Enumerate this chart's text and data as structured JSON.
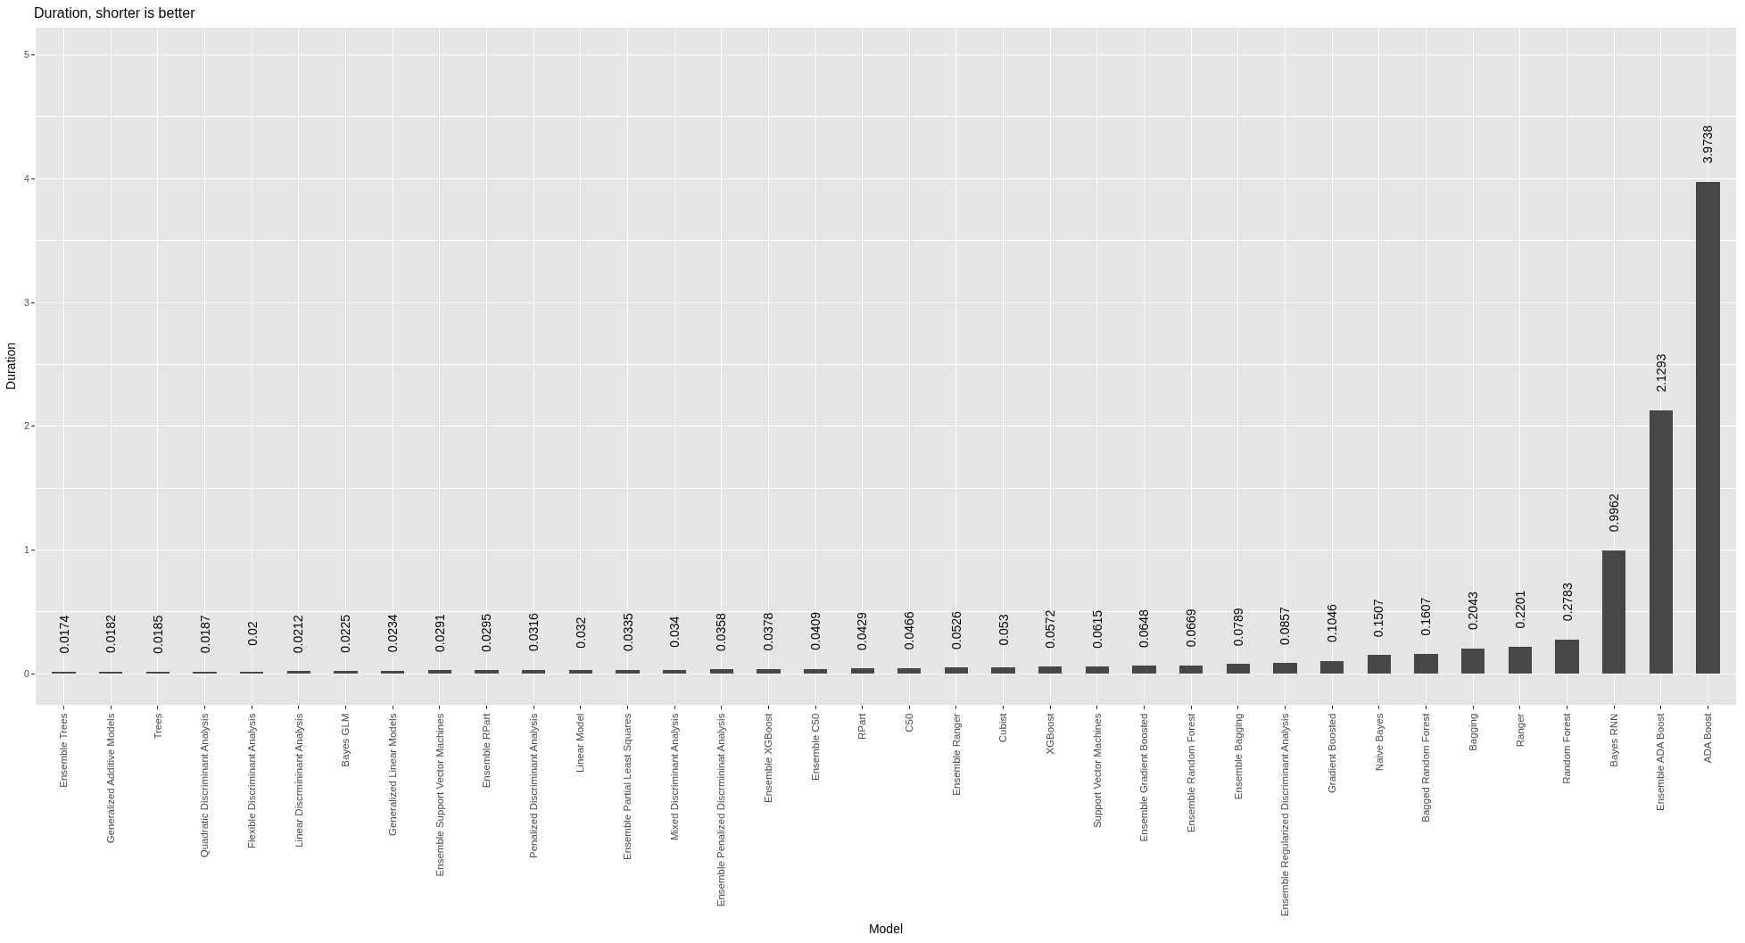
{
  "chart_data": {
    "type": "bar",
    "title": "Duration, shorter is better",
    "xlabel": "Model",
    "ylabel": "Duration",
    "categories": [
      "Ensemble Trees",
      "Generalized Additive Models",
      "Trees",
      "Quadratic Discriminant Analysis",
      "Flexible Discriminant Analysis",
      "Linear Discrmininant Analysis",
      "Bayes GLM",
      "Generalized Linear Models",
      "Ensemble Support Vector Machines",
      "Ensemble RPart",
      "Penalized Discriminant Analysis",
      "Linear Model",
      "Ensemble Partial Least Squares",
      "Mixed Discriminant Analysis",
      "Ensemble Penalized Discrmininat Analysis",
      "Ensemble XGBoost",
      "Ensemble C50",
      "RPart",
      "C50",
      "Ensemble Ranger",
      "Cubist",
      "XGBoost",
      "Support Vector Machines",
      "Ensemble Gradient Boosted",
      "Ensemble Random Forest",
      "Ensemble Bagging",
      "Ensemble Regularized Discriminant Analysis",
      "Gradient Boosted",
      "Naive Bayes",
      "Bagged Random Forest",
      "Bagging",
      "Ranger",
      "Random Forest",
      "Bayes RNN",
      "Ensemble ADA Boost",
      "ADA Boost"
    ],
    "values": [
      0.0174,
      0.0182,
      0.0185,
      0.0187,
      0.02,
      0.0212,
      0.0225,
      0.0234,
      0.0291,
      0.0295,
      0.0316,
      0.032,
      0.0335,
      0.034,
      0.0358,
      0.0378,
      0.0409,
      0.0429,
      0.0466,
      0.0526,
      0.053,
      0.0572,
      0.0615,
      0.0648,
      0.0669,
      0.0789,
      0.0857,
      0.1046,
      0.1507,
      0.1607,
      0.2043,
      0.2201,
      0.2783,
      0.9962,
      2.1293,
      3.9738
    ],
    "color": "#474747",
    "ylim": [
      -0.25,
      5.22
    ],
    "yticks": [
      0,
      1,
      2,
      3,
      4,
      5
    ],
    "grid": true,
    "data_labels": true
  }
}
